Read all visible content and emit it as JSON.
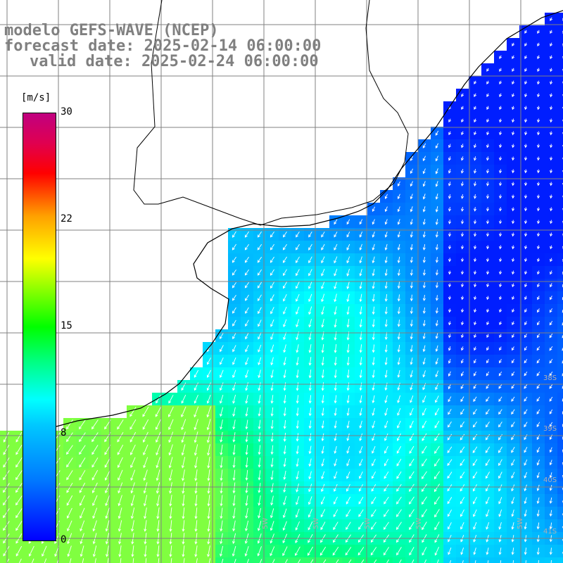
{
  "title": {
    "line1": "modelo GEFS-WAVE (NCEP)",
    "line2": "forecast date: 2025-02-14 06:00:00",
    "line3": "valid date: 2025-02-24 06:00:00"
  },
  "colorbar": {
    "unit": "[m/s]",
    "ticks": [
      "30",
      "22",
      "15",
      "8",
      "0"
    ],
    "stops": [
      "#0000ff",
      "#00c8ff",
      "#00ffff",
      "#00ff00",
      "#ffff00",
      "#ff0000",
      "#c00080"
    ]
  },
  "lat_labels": [
    "38S",
    "39S",
    "40S",
    "41S"
  ],
  "lon_labels": [
    "5W",
    "5W",
    "5W",
    "5W",
    "5W"
  ],
  "colors": {
    "land": "#ffffff",
    "grid": "#808080",
    "coast": "#000000",
    "arrow": "#ffffff"
  }
}
